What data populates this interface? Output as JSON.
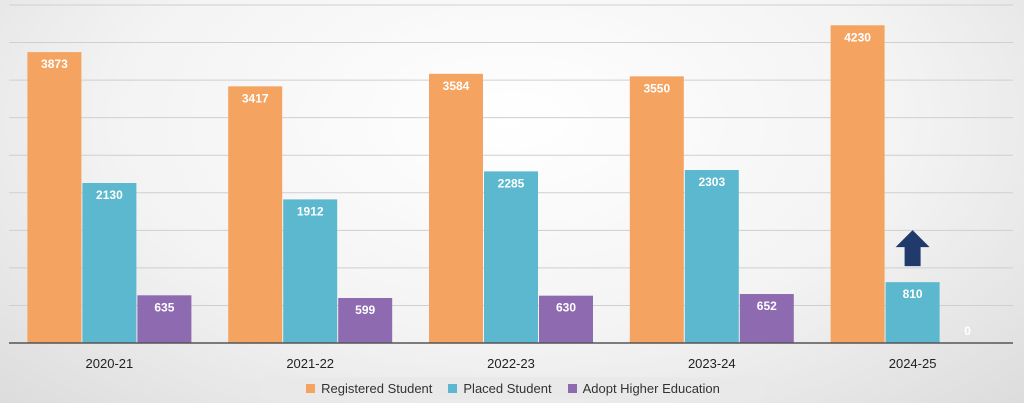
{
  "chart_data": {
    "type": "bar",
    "categories": [
      "2020-21",
      "2021-22",
      "2022-23",
      "2023-24",
      "2024-25"
    ],
    "series": [
      {
        "name": "Registered Student",
        "color": "#F4A460",
        "values": [
          3873,
          3417,
          3584,
          3550,
          4230
        ]
      },
      {
        "name": "Placed Student",
        "color": "#5BB8CF",
        "values": [
          2130,
          1912,
          2285,
          2303,
          810
        ]
      },
      {
        "name": "Adopt Higher Education",
        "color": "#8E6BB0",
        "values": [
          635,
          599,
          630,
          652,
          0
        ]
      }
    ],
    "ylim": [
      0,
      4500
    ],
    "grid": true,
    "legend_position": "bottom",
    "annotation": {
      "type": "arrow-up-icon",
      "color": "#1F3A6B",
      "category": "2024-25",
      "series": "Placed Student"
    }
  }
}
